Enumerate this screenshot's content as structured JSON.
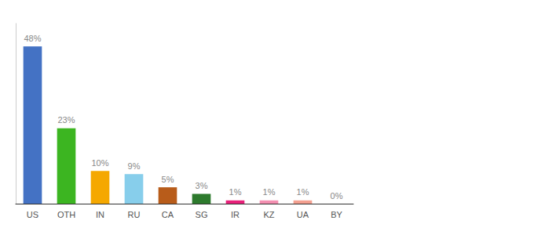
{
  "chart_data": {
    "type": "bar",
    "categories": [
      "US",
      "OTH",
      "IN",
      "RU",
      "CA",
      "SG",
      "IR",
      "KZ",
      "UA",
      "BY"
    ],
    "values": [
      48,
      23,
      10,
      9,
      5,
      3,
      1,
      1,
      1,
      0
    ],
    "value_labels": [
      "48%",
      "23%",
      "10%",
      "9%",
      "5%",
      "3%",
      "1%",
      "1%",
      "1%",
      "0%"
    ],
    "colors": [
      "#4472c4",
      "#3cb521",
      "#f5a800",
      "#87ceeb",
      "#b85c1a",
      "#2d7a2d",
      "#e8207a",
      "#f48fb1",
      "#f4a090",
      "#d3d3d3"
    ],
    "ylim": [
      0,
      55
    ],
    "grid": false,
    "data_labels": true,
    "tick_labels": "x"
  }
}
